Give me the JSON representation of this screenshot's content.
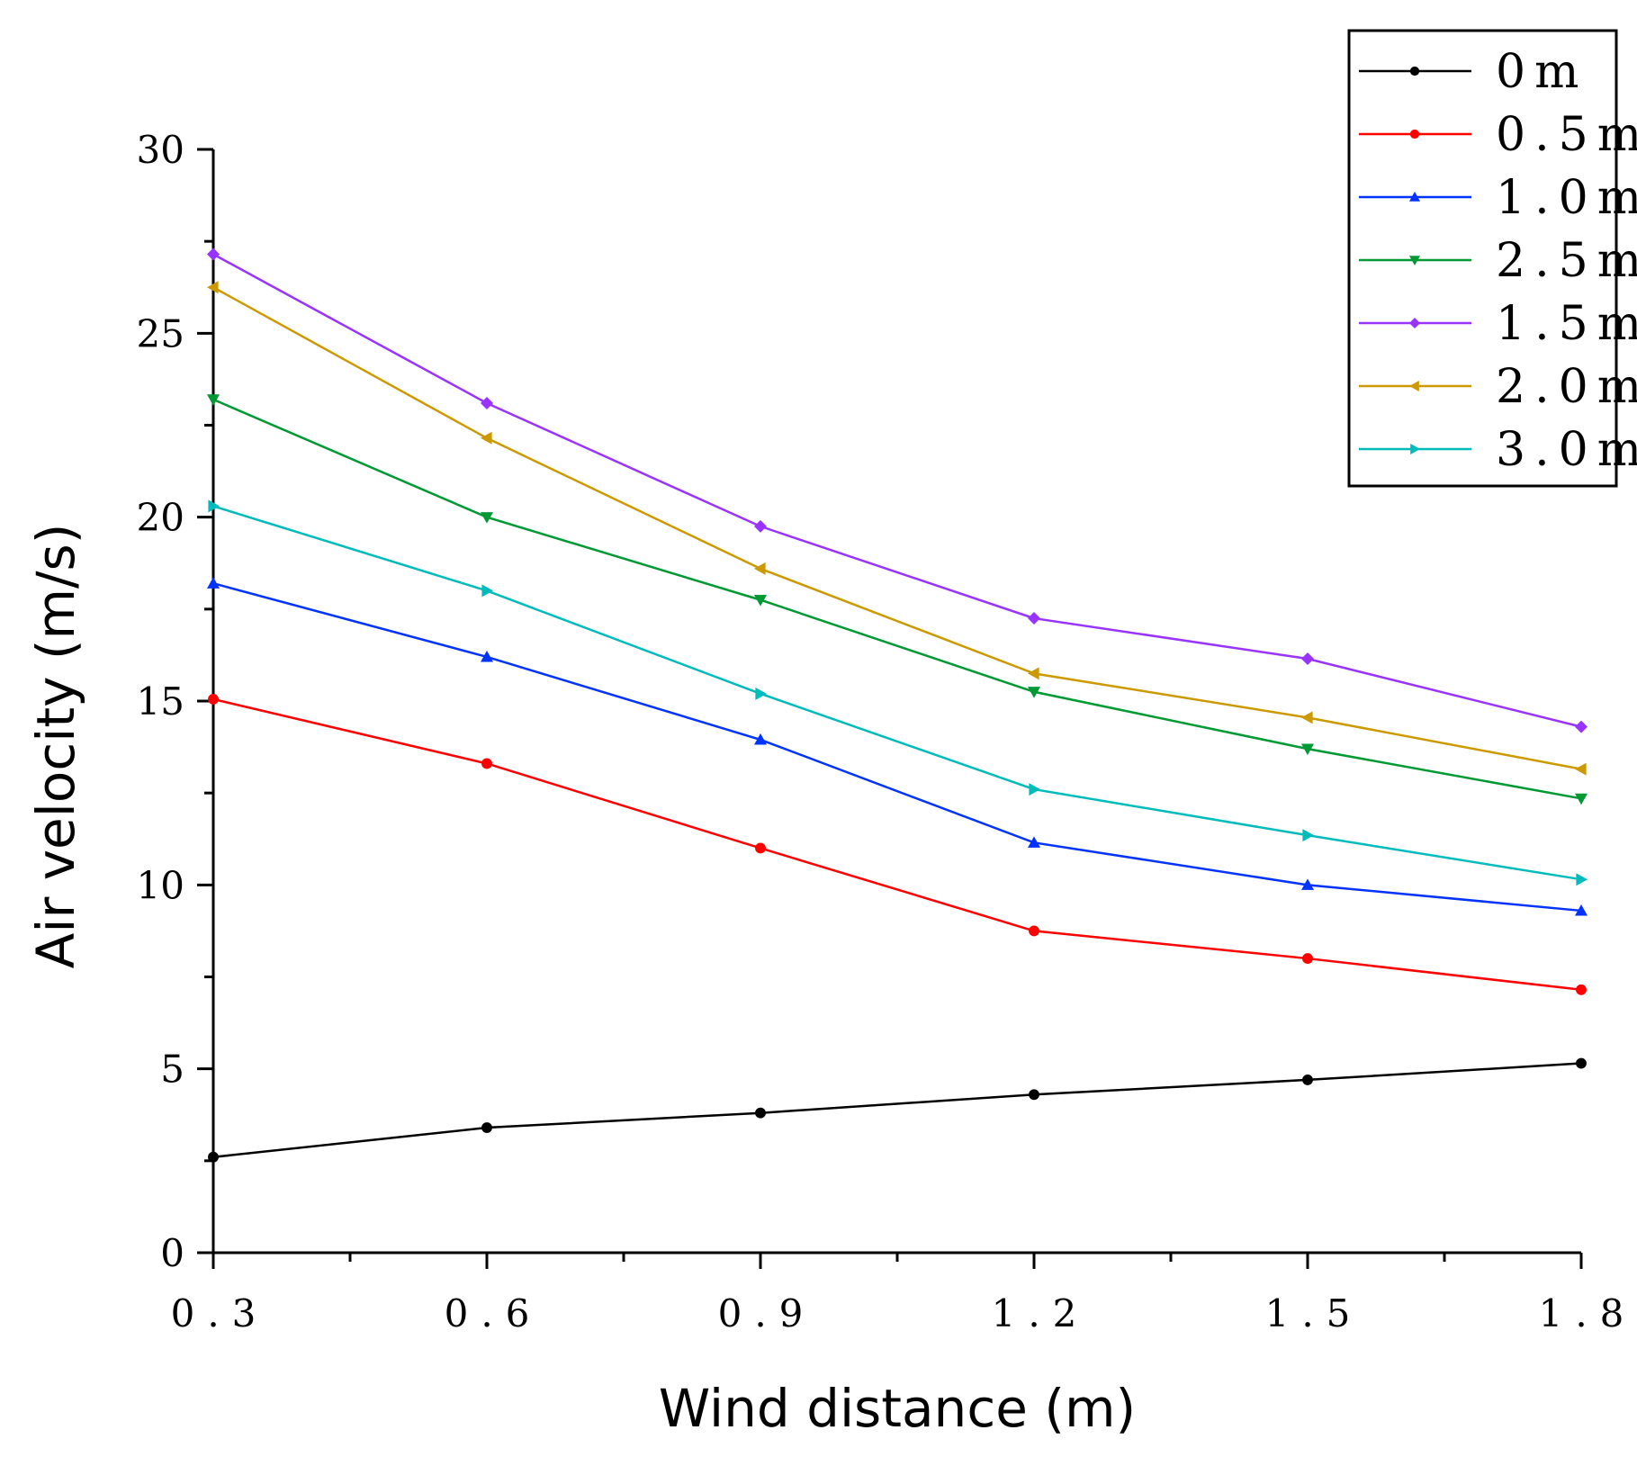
{
  "chart_data": {
    "type": "line",
    "title": "",
    "xlabel": "Wind distance (m)",
    "ylabel": "Air velocity (m/s)",
    "x": [
      0.3,
      0.6,
      0.9,
      1.2,
      1.5,
      1.8
    ],
    "x_tick_labels": [
      "0.3",
      "0.6",
      "0.9",
      "1.2",
      "1.5",
      "1.8"
    ],
    "xlim": [
      0.3,
      1.8
    ],
    "ylim": [
      0,
      30
    ],
    "y_ticks": [
      0,
      5,
      10,
      15,
      20,
      25,
      30
    ],
    "y_tick_labels": [
      "0",
      "5",
      "10",
      "15",
      "20",
      "25",
      "30"
    ],
    "grid": false,
    "legend_position": "top-right",
    "series": [
      {
        "name": "0m",
        "color": "#000000",
        "marker": "circle",
        "values": [
          2.6,
          3.4,
          3.8,
          4.3,
          4.7,
          5.15
        ]
      },
      {
        "name": "0.5m",
        "color": "#ff0000",
        "marker": "circle",
        "values": [
          15.05,
          13.3,
          11.0,
          8.75,
          8.0,
          7.15
        ]
      },
      {
        "name": "1.0m",
        "color": "#0033ff",
        "marker": "triangle-up",
        "values": [
          18.2,
          16.2,
          13.95,
          11.15,
          10.0,
          9.3
        ]
      },
      {
        "name": "2.5m",
        "color": "#009933",
        "marker": "triangle-down",
        "values": [
          23.2,
          20.0,
          17.75,
          15.25,
          13.7,
          12.35
        ]
      },
      {
        "name": "1.5m",
        "color": "#9933ff",
        "marker": "diamond",
        "values": [
          27.15,
          23.1,
          19.75,
          17.25,
          16.15,
          14.3
        ]
      },
      {
        "name": "2.0m",
        "color": "#cc9900",
        "marker": "triangle-left",
        "values": [
          26.25,
          22.15,
          18.6,
          15.75,
          14.55,
          13.15
        ]
      },
      {
        "name": "3.0m",
        "color": "#00bbbb",
        "marker": "triangle-right",
        "values": [
          20.3,
          18.0,
          15.2,
          12.6,
          11.35,
          10.15
        ]
      }
    ]
  }
}
